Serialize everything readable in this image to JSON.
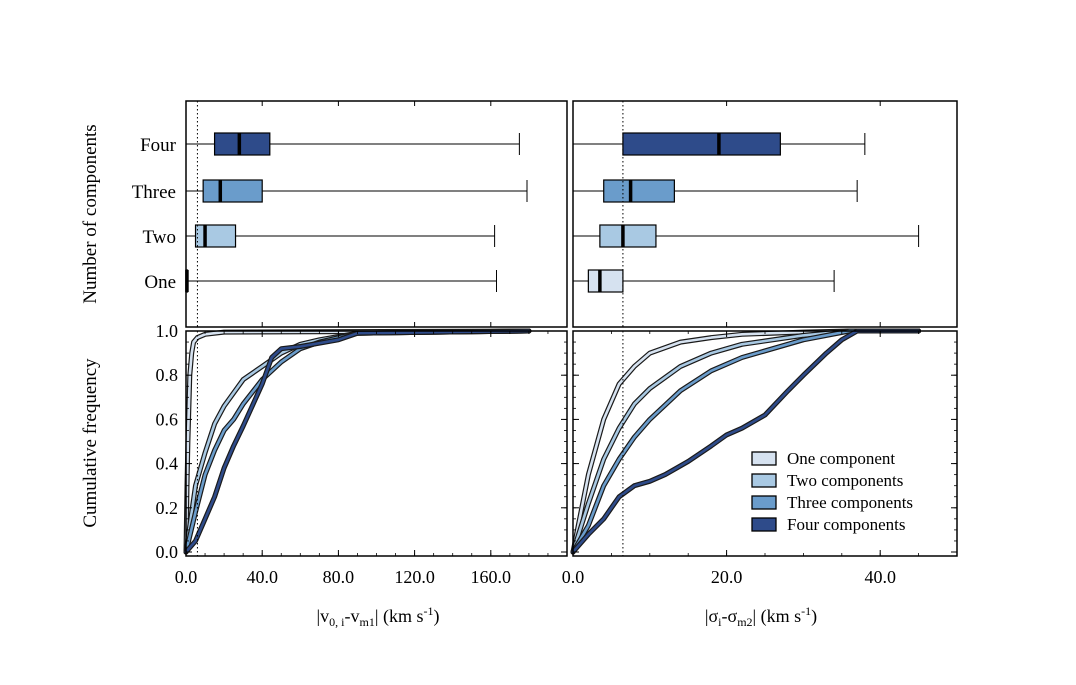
{
  "chart_data": [
    {
      "panel": "top-left",
      "type": "boxplot",
      "ylabel": "Number of components",
      "categories": [
        "One",
        "Two",
        "Three",
        "Four"
      ],
      "xlim": [
        0,
        200
      ],
      "reference_line": 6,
      "boxes": [
        {
          "name": "One",
          "min": 0,
          "q1": 0,
          "median": 0.5,
          "q3": 0.8,
          "max": 163,
          "color": "#d6e2f0"
        },
        {
          "name": "Two",
          "min": 0,
          "q1": 5,
          "median": 10,
          "q3": 26,
          "max": 162,
          "color": "#a9c9e3"
        },
        {
          "name": "Three",
          "min": 0,
          "q1": 9,
          "median": 18,
          "q3": 40,
          "max": 179,
          "color": "#6a9ccb"
        },
        {
          "name": "Four",
          "min": 0,
          "q1": 15,
          "median": 28,
          "q3": 44,
          "max": 175,
          "color": "#2e4b8a"
        }
      ]
    },
    {
      "panel": "top-right",
      "type": "boxplot",
      "categories": [
        "One",
        "Two",
        "Three",
        "Four"
      ],
      "xlim": [
        0,
        50
      ],
      "reference_line": 6.5,
      "boxes": [
        {
          "name": "One",
          "min": 0,
          "q1": 2,
          "median": 3.5,
          "q3": 6.5,
          "max": 34,
          "color": "#d6e2f0"
        },
        {
          "name": "Two",
          "min": 0,
          "q1": 3.5,
          "median": 6.5,
          "q3": 10.8,
          "max": 45,
          "color": "#a9c9e3"
        },
        {
          "name": "Three",
          "min": 0,
          "q1": 4,
          "median": 7.5,
          "q3": 13.2,
          "max": 37,
          "color": "#6a9ccb"
        },
        {
          "name": "Four",
          "min": 0,
          "q1": 6.5,
          "median": 19,
          "q3": 27,
          "max": 38,
          "color": "#2e4b8a"
        }
      ]
    },
    {
      "panel": "bottom-left",
      "type": "line",
      "xlabel": "|v0, i-vm1| (km s-1)",
      "xlabel_main": "|v",
      "xlabel_sub1": "0, i",
      "xlabel_mid": "-v",
      "xlabel_sub2": "m1",
      "xlabel_end": "| (km s",
      "xlabel_sup": "-1",
      "xlabel_close": ")",
      "ylabel": "Cumulative frequency",
      "xlim": [
        0,
        200
      ],
      "ylim": [
        0,
        1
      ],
      "reference_line": 6,
      "xticks": [
        0,
        40,
        80,
        120,
        160
      ],
      "xtick_labels": [
        "0.0",
        "40.0",
        "80.0",
        "120.0",
        "160.0"
      ],
      "yticks": [
        0,
        0.2,
        0.4,
        0.6,
        0.8,
        1.0
      ],
      "ytick_labels": [
        "0.0",
        "0.2",
        "0.4",
        "0.6",
        "0.8",
        "1.0"
      ],
      "series": [
        {
          "name": "One component",
          "color": "#d6e2f0",
          "x": [
            0,
            0.5,
            1,
            2,
            3,
            4,
            6,
            10,
            20,
            180
          ],
          "y": [
            0,
            0.3,
            0.5,
            0.8,
            0.9,
            0.95,
            0.97,
            0.985,
            0.995,
            1.0
          ]
        },
        {
          "name": "Two components",
          "color": "#a9c9e3",
          "x": [
            0,
            5,
            10,
            15,
            20,
            25,
            30,
            40,
            50,
            60,
            70,
            90,
            180
          ],
          "y": [
            0,
            0.3,
            0.45,
            0.58,
            0.66,
            0.72,
            0.78,
            0.84,
            0.9,
            0.94,
            0.96,
            0.99,
            1.0
          ]
        },
        {
          "name": "Three components",
          "color": "#6a9ccb",
          "x": [
            0,
            5,
            10,
            15,
            20,
            25,
            30,
            40,
            50,
            60,
            70,
            90,
            180
          ],
          "y": [
            0,
            0.18,
            0.35,
            0.46,
            0.55,
            0.6,
            0.67,
            0.78,
            0.86,
            0.92,
            0.95,
            0.99,
            1.0
          ]
        },
        {
          "name": "Four components",
          "color": "#2e4b8a",
          "x": [
            0,
            5,
            10,
            15,
            20,
            25,
            30,
            40,
            45,
            50,
            60,
            80,
            90,
            180
          ],
          "y": [
            0,
            0.05,
            0.15,
            0.25,
            0.38,
            0.48,
            0.57,
            0.76,
            0.88,
            0.92,
            0.93,
            0.96,
            0.99,
            1.0
          ]
        }
      ]
    },
    {
      "panel": "bottom-right",
      "type": "line",
      "xlabel": "|σi-σm2| (km s-1)",
      "xlabel_main": "|σ",
      "xlabel_sub1": "i",
      "xlabel_mid": "-σ",
      "xlabel_sub2": "m2",
      "xlabel_end": "| (km s",
      "xlabel_sup": "-1",
      "xlabel_close": ")",
      "xlim": [
        0,
        50
      ],
      "ylim": [
        0,
        1
      ],
      "reference_line": 6.5,
      "xticks": [
        0,
        20,
        40
      ],
      "xtick_labels": [
        "0.0",
        "20.0",
        "40.0"
      ],
      "legend_position": "lower-right",
      "series": [
        {
          "name": "One component",
          "color": "#d6e2f0",
          "x": [
            0,
            2,
            4,
            6,
            8,
            10,
            14,
            18,
            22,
            30,
            36,
            45
          ],
          "y": [
            0,
            0.35,
            0.6,
            0.76,
            0.84,
            0.9,
            0.95,
            0.97,
            0.985,
            0.995,
            1.0,
            1.0
          ]
        },
        {
          "name": "Two components",
          "color": "#a9c9e3",
          "x": [
            0,
            2,
            4,
            6,
            8,
            10,
            14,
            18,
            22,
            30,
            36,
            45
          ],
          "y": [
            0,
            0.22,
            0.42,
            0.56,
            0.67,
            0.74,
            0.84,
            0.9,
            0.94,
            0.98,
            1.0,
            1.0
          ]
        },
        {
          "name": "Three components",
          "color": "#6a9ccb",
          "x": [
            0,
            2,
            4,
            6,
            8,
            10,
            14,
            18,
            22,
            30,
            36,
            45
          ],
          "y": [
            0,
            0.12,
            0.3,
            0.42,
            0.52,
            0.6,
            0.73,
            0.82,
            0.88,
            0.96,
            1.0,
            1.0
          ]
        },
        {
          "name": "Four components",
          "color": "#2e4b8a",
          "x": [
            0,
            2,
            4,
            6,
            8,
            10,
            12,
            15,
            18,
            20,
            22,
            25,
            28,
            30,
            33,
            35,
            37,
            45
          ],
          "y": [
            0,
            0.08,
            0.15,
            0.25,
            0.3,
            0.32,
            0.35,
            0.41,
            0.48,
            0.53,
            0.56,
            0.62,
            0.73,
            0.8,
            0.9,
            0.96,
            1.0,
            1.0
          ]
        }
      ]
    }
  ]
}
